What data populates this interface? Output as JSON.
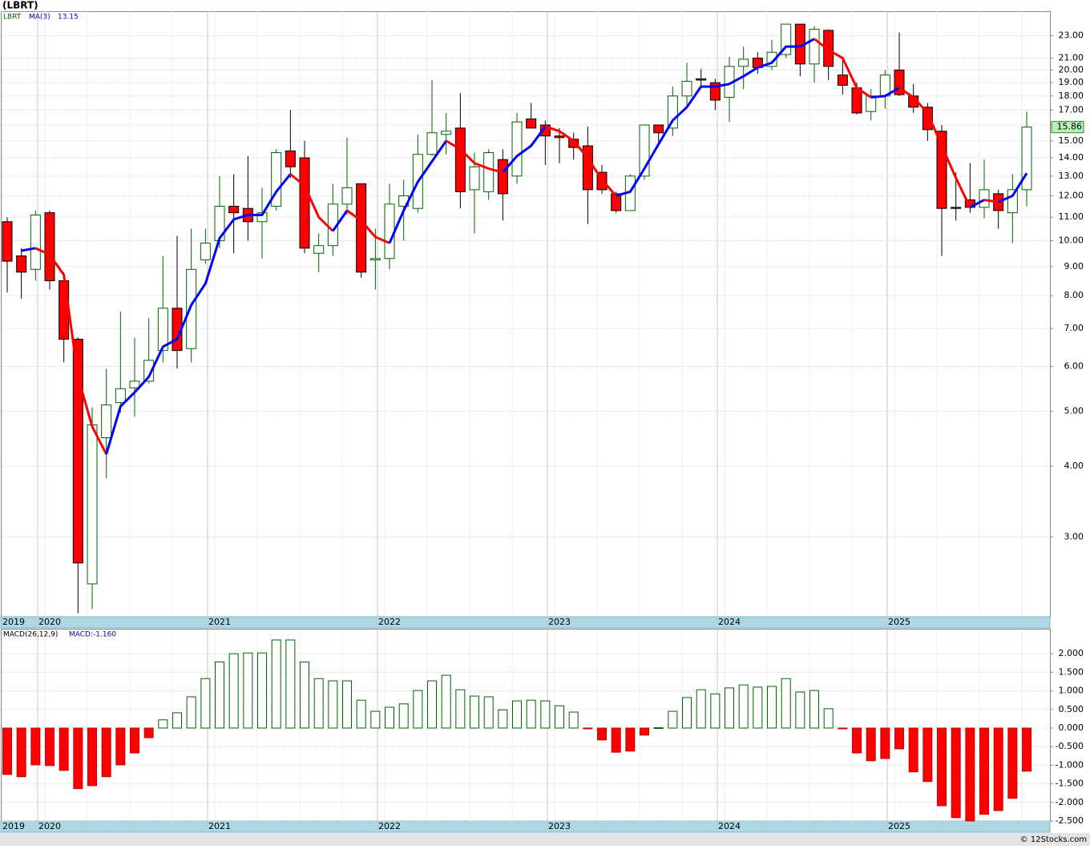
{
  "chart_data": [
    {
      "type": "candlestick",
      "title": "(LBRT)",
      "categories": [
        "2019",
        null,
        null,
        "2020",
        null,
        null,
        null,
        null,
        null,
        null,
        null,
        null,
        null,
        null,
        null,
        "2021",
        null,
        null,
        null,
        null,
        null,
        null,
        null,
        null,
        null,
        null,
        null,
        "2022",
        null,
        null,
        null,
        null,
        null,
        null,
        null,
        null,
        null,
        null,
        null,
        "2023",
        null,
        null,
        null,
        null,
        null,
        null,
        null,
        null,
        null,
        null,
        null,
        "2024",
        null,
        null,
        null,
        null,
        null,
        null,
        null,
        null,
        null,
        null,
        null,
        "2025",
        null,
        null,
        null,
        null,
        null,
        null,
        null,
        null,
        null
      ],
      "series": [
        {
          "name": "LBRT",
          "color": "#006400",
          "up_color": "#ffffff",
          "down_color": "#ff0000",
          "open": [
            10.8,
            9.4,
            8.9,
            11.2,
            8.5,
            6.7,
            2.48,
            4.49,
            5.18,
            5.5,
            5.65,
            6.4,
            7.6,
            6.45,
            9.25,
            10.0,
            11.5,
            11.4,
            10.8,
            11.5,
            14.4,
            14.0,
            9.5,
            9.8,
            11.6,
            12.6,
            9.25,
            9.3,
            11.5,
            11.4,
            14.2,
            15.4,
            15.8,
            12.3,
            12.2,
            13.9,
            13.0,
            16.4,
            16.0,
            15.3,
            15.1,
            14.7,
            13.2,
            12.1,
            11.3,
            13.0,
            16.0,
            15.8,
            18.0,
            19.3,
            19.0,
            17.9,
            20.3,
            21.0,
            20.3,
            21.3,
            24.1,
            20.5,
            23.5,
            19.6,
            18.6,
            16.9,
            18.0,
            20.0,
            18.0,
            17.2,
            15.6,
            11.45,
            11.8,
            11.45,
            12.1,
            11.2,
            12.3
          ],
          "high": [
            11.0,
            9.7,
            11.3,
            11.3,
            8.8,
            6.75,
            5.08,
            5.94,
            7.5,
            6.74,
            7.3,
            9.4,
            10.2,
            10.5,
            10.5,
            13.0,
            13.1,
            14.1,
            12.4,
            14.5,
            17.0,
            15.0,
            10.3,
            12.6,
            15.2,
            12.6,
            10.5,
            12.6,
            12.8,
            15.4,
            19.2,
            16.8,
            18.2,
            14.3,
            14.5,
            14.5,
            16.8,
            17.5,
            16.3,
            15.8,
            15.5,
            15.9,
            13.6,
            12.2,
            13.1,
            16.0,
            16.0,
            18.7,
            20.6,
            20.1,
            19.3,
            21.1,
            22.0,
            21.5,
            22.6,
            24.1,
            24.1,
            23.9,
            23.6,
            20.8,
            19.0,
            18.5,
            20.0,
            23.3,
            18.9,
            17.5,
            16.0,
            13.2,
            13.7,
            13.9,
            12.3,
            13.1,
            16.9
          ],
          "low": [
            8.1,
            7.9,
            8.5,
            8.2,
            6.1,
            2.2,
            2.24,
            3.81,
            4.97,
            4.89,
            5.6,
            6.1,
            5.95,
            6.1,
            9.1,
            9.7,
            9.5,
            10.0,
            9.3,
            11.3,
            12.9,
            9.5,
            8.8,
            9.4,
            11.1,
            8.6,
            8.2,
            8.9,
            10.0,
            11.2,
            14.1,
            14.2,
            11.4,
            10.3,
            11.8,
            10.85,
            12.6,
            15.8,
            13.6,
            13.7,
            13.9,
            10.7,
            12.1,
            11.2,
            11.3,
            12.8,
            14.9,
            15.3,
            17.1,
            18.7,
            17.0,
            16.2,
            18.5,
            19.7,
            20.0,
            21.0,
            19.5,
            19.0,
            19.2,
            18.1,
            16.7,
            16.3,
            17.1,
            18.0,
            16.8,
            15.0,
            9.4,
            10.85,
            11.2,
            10.95,
            10.5,
            9.9,
            11.5
          ],
          "close": [
            9.2,
            8.8,
            11.1,
            8.5,
            6.7,
            2.7,
            4.73,
            5.13,
            5.48,
            5.65,
            6.15,
            7.6,
            6.4,
            8.9,
            9.9,
            11.5,
            11.2,
            10.8,
            11.2,
            14.3,
            13.5,
            9.7,
            9.8,
            11.6,
            12.4,
            8.8,
            9.3,
            11.6,
            12.0,
            14.2,
            15.5,
            15.6,
            12.2,
            13.5,
            14.3,
            12.1,
            16.2,
            15.8,
            15.3,
            15.2,
            14.6,
            12.3,
            12.3,
            11.3,
            13.0,
            16.0,
            15.5,
            18.0,
            19.1,
            19.2,
            17.7,
            20.3,
            20.9,
            20.2,
            21.5,
            24.1,
            20.5,
            23.6,
            20.3,
            18.8,
            16.8,
            18.0,
            19.6,
            18.1,
            17.2,
            15.7,
            11.4,
            11.4,
            11.45,
            12.3,
            11.3,
            12.3,
            15.86
          ]
        },
        {
          "name": "MA(3)",
          "color": "#0000ff",
          "up_color": "#0000ff",
          "down_color": "#ff0000",
          "values": [
            null,
            9.6,
            9.7,
            9.45,
            8.7,
            5.75,
            4.7,
            4.2,
            5.1,
            5.4,
            5.75,
            6.5,
            6.7,
            7.7,
            8.4,
            10.1,
            10.9,
            11.1,
            11.1,
            12.2,
            13.1,
            12.5,
            11.0,
            10.4,
            11.3,
            10.85,
            10.15,
            9.9,
            11.3,
            12.7,
            13.8,
            15.0,
            14.5,
            13.7,
            13.4,
            13.2,
            14.1,
            14.7,
            15.9,
            15.6,
            15.0,
            14.0,
            12.8,
            12.0,
            12.2,
            13.4,
            14.8,
            16.3,
            17.2,
            18.7,
            18.7,
            18.9,
            19.5,
            20.2,
            20.6,
            22.0,
            22.0,
            22.7,
            21.7,
            21.0,
            18.6,
            17.9,
            18.0,
            18.6,
            17.9,
            16.8,
            14.7,
            12.9,
            11.45,
            11.8,
            11.7,
            12.0,
            13.15
          ]
        }
      ],
      "log_scale": true,
      "ylim": [
        2.17,
        25.4
      ],
      "grid": true,
      "yticks": [
        {
          "value": 3,
          "label": "3.00"
        },
        {
          "value": 4,
          "label": "4.00"
        },
        {
          "value": 5,
          "label": "5.00"
        },
        {
          "value": 6,
          "label": "6.00"
        },
        {
          "value": 7,
          "label": "7.00"
        },
        {
          "value": 8,
          "label": "8.00"
        },
        {
          "value": 9,
          "label": "9.00"
        },
        {
          "value": 10,
          "label": "10.00"
        },
        {
          "value": 11,
          "label": "11.00"
        },
        {
          "value": 12,
          "label": "12.00"
        },
        {
          "value": 13,
          "label": "13.00"
        },
        {
          "value": 14,
          "label": "14.00"
        },
        {
          "value": 15,
          "label": "15.00"
        },
        {
          "value": 16,
          "label": "16.00"
        },
        {
          "value": 17,
          "label": "17.00"
        },
        {
          "value": 18,
          "label": "18.00"
        },
        {
          "value": 19,
          "label": "19.00"
        },
        {
          "value": 20,
          "label": "20.00"
        },
        {
          "value": 21,
          "label": "21.00"
        },
        {
          "value": 23,
          "label": "23.00"
        }
      ]
    },
    {
      "type": "bar",
      "title": "MACD(26,12,9)",
      "value_label": "MACD:-1.160",
      "categories": [
        "2019",
        null,
        null,
        "2020",
        null,
        null,
        null,
        null,
        null,
        null,
        null,
        null,
        null,
        null,
        null,
        "2021",
        null,
        null,
        null,
        null,
        null,
        null,
        null,
        null,
        null,
        null,
        null,
        "2022",
        null,
        null,
        null,
        null,
        null,
        null,
        null,
        null,
        null,
        null,
        null,
        "2023",
        null,
        null,
        null,
        null,
        null,
        null,
        null,
        null,
        null,
        null,
        null,
        "2024",
        null,
        null,
        null,
        null,
        null,
        null,
        null,
        null,
        null,
        null,
        null,
        "2025",
        null,
        null,
        null,
        null,
        null,
        null,
        null,
        null,
        null
      ],
      "values": [
        -1.25,
        -1.31,
        -0.99,
        -1.01,
        -1.14,
        -1.63,
        -1.55,
        -1.31,
        -0.99,
        -0.67,
        -0.26,
        0.22,
        0.41,
        0.84,
        1.33,
        1.78,
        2.0,
        2.02,
        2.02,
        2.37,
        2.37,
        1.78,
        1.33,
        1.27,
        1.27,
        0.75,
        0.45,
        0.56,
        0.65,
        1.01,
        1.27,
        1.42,
        1.03,
        0.86,
        0.84,
        0.49,
        0.73,
        0.75,
        0.73,
        0.6,
        0.43,
        -0.02,
        -0.32,
        -0.65,
        -0.62,
        -0.19,
        0.01,
        0.45,
        0.82,
        1.03,
        0.92,
        1.08,
        1.16,
        1.1,
        1.12,
        1.33,
        0.97,
        1.01,
        0.52,
        -0.02,
        -0.67,
        -0.88,
        -0.82,
        -0.56,
        -1.18,
        -1.44,
        -2.09,
        -2.41,
        -2.5,
        -2.32,
        -2.22,
        -1.89,
        -1.16
      ],
      "up_color": "#006400",
      "down_color": "#ff0000",
      "ylim": [
        -2.5,
        2.65
      ],
      "grid": true,
      "yticks": [
        {
          "value": 2,
          "label": "2.000"
        },
        {
          "value": 1.5,
          "label": "1.500"
        },
        {
          "value": 1,
          "label": "1.000"
        },
        {
          "value": 0.5,
          "label": "0.500"
        },
        {
          "value": 0,
          "label": "0.000"
        },
        {
          "value": -0.5,
          "label": "-0.500"
        },
        {
          "value": -1,
          "label": "-1.000"
        },
        {
          "value": -1.5,
          "label": "-1.500"
        },
        {
          "value": -2,
          "label": "-2.000"
        },
        {
          "value": -2.5,
          "label": "-2.500"
        }
      ]
    }
  ],
  "footer": "© 12Stocks.com"
}
